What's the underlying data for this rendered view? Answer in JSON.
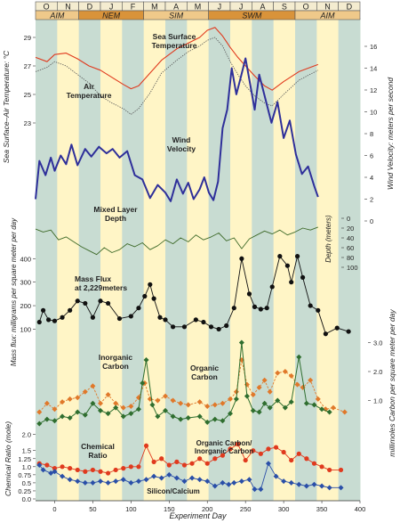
{
  "chart_data": {
    "type": "line",
    "months": [
      "O",
      "N",
      "D",
      "J",
      "F",
      "M",
      "A",
      "M",
      "J",
      "J",
      "A",
      "S",
      "O",
      "N",
      "D"
    ],
    "seasons": [
      "AIM",
      "NEM",
      "SIM",
      "SWM",
      "AIM"
    ],
    "xlabel": "Experiment Day",
    "x_ticks": [
      0,
      50,
      100,
      150,
      200,
      250,
      300,
      350,
      400
    ],
    "axes": {
      "temperature": {
        "label": "Sea Surface–Air Temperature: °C",
        "ticks": [
          23,
          25,
          27,
          29
        ]
      },
      "wind": {
        "label": "Wind Velocity: meters per second",
        "ticks": [
          0,
          2,
          4,
          6,
          8,
          10,
          12,
          14,
          16
        ]
      },
      "depth": {
        "label": "Depth (meters)",
        "ticks": [
          0,
          20,
          40,
          60,
          80,
          100
        ]
      },
      "mass_flux": {
        "label": "Mass flux: milligrams per square meter per day",
        "ticks": [
          100,
          200,
          300,
          400
        ]
      },
      "carbon": {
        "label": "millimoles Carbon per square meter per day",
        "ticks": [
          1.0,
          2.0,
          3.0
        ]
      },
      "ratio": {
        "label": "Chemical Ratio (mole)",
        "ticks": [
          0.0,
          0.25,
          0.5,
          0.75,
          1.0,
          1.25,
          1.5,
          2.0
        ]
      }
    },
    "series": [
      {
        "name": "Sea Surface Temperature",
        "label": "Sea Surface\nTemperature",
        "color": "#e03a1e",
        "x": [
          -25,
          -10,
          0,
          15,
          30,
          45,
          60,
          75,
          90,
          100,
          110,
          125,
          140,
          160,
          175,
          190,
          200,
          210,
          220,
          230,
          240,
          250,
          262,
          275,
          285,
          300,
          320,
          345
        ],
        "y": [
          27.6,
          27.3,
          27.8,
          27.9,
          27.5,
          27.0,
          26.7,
          26.2,
          25.7,
          25.4,
          25.6,
          26.5,
          27.4,
          28.2,
          28.6,
          29.0,
          29.5,
          29.7,
          29.1,
          28.3,
          27.6,
          27.0,
          26.3,
          25.6,
          25.3,
          25.9,
          26.6,
          27.1
        ]
      },
      {
        "name": "Air Temperature",
        "label": "Air\nTemperature",
        "color": "#555555",
        "x": [
          -25,
          -10,
          0,
          15,
          30,
          45,
          60,
          75,
          90,
          100,
          110,
          125,
          140,
          160,
          175,
          190,
          200,
          210,
          220,
          230,
          240,
          250,
          262,
          275,
          285,
          300,
          320,
          345
        ],
        "y": [
          26.6,
          26.9,
          27.3,
          27.0,
          26.4,
          25.8,
          24.9,
          24.4,
          24.0,
          23.6,
          24.0,
          25.1,
          26.5,
          27.4,
          28.0,
          28.4,
          28.8,
          29.0,
          28.4,
          27.3,
          26.4,
          25.6,
          24.9,
          24.4,
          24.2,
          25.0,
          26.0,
          26.7
        ]
      },
      {
        "name": "Wind Velocity",
        "label": "Wind\nVelocity",
        "color": "#2e2f9a",
        "x": [
          -25,
          -20,
          -12,
          -5,
          0,
          8,
          15,
          22,
          30,
          40,
          48,
          58,
          68,
          76,
          85,
          95,
          105,
          115,
          125,
          135,
          145,
          152,
          160,
          168,
          175,
          182,
          190,
          196,
          202,
          208,
          214,
          220,
          226,
          232,
          238,
          244,
          250,
          256,
          262,
          268,
          276,
          284,
          292,
          300,
          308,
          316,
          324,
          332,
          340,
          345
        ],
        "y": [
          2.0,
          5.5,
          4.2,
          5.8,
          4.6,
          6.0,
          5.2,
          7.0,
          5.1,
          6.6,
          5.9,
          6.8,
          6.2,
          6.6,
          5.8,
          6.4,
          4.2,
          3.8,
          2.1,
          3.3,
          2.6,
          1.8,
          3.8,
          2.5,
          3.5,
          2.0,
          2.9,
          4.0,
          2.6,
          1.9,
          3.6,
          8.5,
          10.2,
          14.0,
          11.6,
          13.2,
          14.9,
          12.6,
          10.2,
          13.4,
          11.2,
          9.0,
          10.9,
          7.6,
          9.2,
          6.1,
          4.3,
          5.0,
          3.2,
          2.2
        ]
      },
      {
        "name": "Mixed Layer Depth",
        "label": "Mixed Layer\nDepth",
        "color": "#3f6b2a",
        "x": [
          -25,
          -15,
          -5,
          5,
          15,
          25,
          35,
          45,
          55,
          65,
          75,
          85,
          95,
          105,
          115,
          125,
          135,
          145,
          155,
          165,
          175,
          185,
          195,
          205,
          215,
          225,
          235,
          245,
          255,
          265,
          275,
          285,
          295,
          305,
          315,
          325,
          335,
          345
        ],
        "y": [
          22,
          28,
          24,
          44,
          38,
          48,
          58,
          66,
          74,
          60,
          70,
          64,
          52,
          58,
          50,
          64,
          56,
          44,
          52,
          40,
          48,
          34,
          44,
          38,
          30,
          46,
          40,
          62,
          42,
          34,
          26,
          32,
          24,
          34,
          28,
          20,
          24,
          18
        ]
      },
      {
        "name": "Mass Flux at 2,229meters",
        "label": "Mass Flux\nat 2,229meters",
        "color": "#111111",
        "x": [
          -20,
          -15,
          -8,
          0,
          10,
          20,
          30,
          40,
          50,
          60,
          70,
          85,
          100,
          110,
          118,
          125,
          130,
          138,
          145,
          155,
          170,
          185,
          195,
          205,
          215,
          225,
          235,
          245,
          255,
          262,
          270,
          278,
          285,
          295,
          305,
          310,
          318,
          325,
          335,
          345,
          355,
          370,
          385
        ],
        "y": [
          130,
          180,
          140,
          135,
          150,
          180,
          220,
          210,
          150,
          220,
          210,
          145,
          155,
          190,
          240,
          290,
          230,
          150,
          140,
          110,
          110,
          140,
          130,
          110,
          100,
          115,
          190,
          400,
          250,
          195,
          185,
          190,
          280,
          410,
          370,
          300,
          410,
          320,
          200,
          180,
          80,
          105,
          90
        ]
      },
      {
        "name": "Inorganic Carbon",
        "label": "Inorganic\nCarbon",
        "color": "#2f6e2f",
        "x": [
          -20,
          -10,
          0,
          10,
          20,
          30,
          40,
          50,
          60,
          70,
          80,
          90,
          100,
          110,
          115,
          120,
          128,
          135,
          145,
          155,
          165,
          175,
          190,
          200,
          210,
          220,
          230,
          238,
          245,
          252,
          260,
          268,
          275,
          282,
          292,
          302,
          310,
          320,
          330,
          340,
          350,
          360
        ],
        "y": [
          0.2,
          0.35,
          0.3,
          0.45,
          0.4,
          0.6,
          0.5,
          0.9,
          0.65,
          0.55,
          0.75,
          0.45,
          0.55,
          0.7,
          1.6,
          2.4,
          0.85,
          0.45,
          0.65,
          0.45,
          0.35,
          0.4,
          0.45,
          0.25,
          0.35,
          0.3,
          0.55,
          1.05,
          3.0,
          1.15,
          0.65,
          0.6,
          0.9,
          0.75,
          1.0,
          0.75,
          0.95,
          2.5,
          0.9,
          0.85,
          0.7,
          0.6
        ]
      },
      {
        "name": "Organic Carbon",
        "label": "Organic\nCarbon",
        "color": "#e0782a",
        "x": [
          -20,
          -10,
          0,
          10,
          20,
          30,
          40,
          50,
          60,
          70,
          80,
          90,
          100,
          110,
          118,
          125,
          135,
          145,
          155,
          165,
          175,
          190,
          200,
          210,
          220,
          230,
          238,
          245,
          252,
          260,
          268,
          275,
          282,
          292,
          302,
          310,
          318,
          325,
          335,
          345,
          355,
          365,
          380
        ],
        "y": [
          0.6,
          0.9,
          0.7,
          0.95,
          1.05,
          1.1,
          1.3,
          1.5,
          0.9,
          1.2,
          0.9,
          0.75,
          0.8,
          1.1,
          1.6,
          1.05,
          1.0,
          1.15,
          1.0,
          0.9,
          0.85,
          0.95,
          0.8,
          0.85,
          0.9,
          1.05,
          1.3,
          2.4,
          1.55,
          1.2,
          1.45,
          1.7,
          1.3,
          1.95,
          2.0,
          1.85,
          1.55,
          1.45,
          1.7,
          1.05,
          0.7,
          0.75,
          0.6
        ]
      },
      {
        "name": "Organic Carbon/ Inorganic Carbon",
        "label": "Organic Carbon/\nInorganic Carbon",
        "color": "#e03a1e",
        "x": [
          -20,
          -10,
          0,
          10,
          20,
          30,
          40,
          50,
          60,
          70,
          80,
          90,
          100,
          110,
          120,
          130,
          140,
          150,
          160,
          170,
          180,
          190,
          200,
          210,
          220,
          230,
          240,
          250,
          260,
          270,
          280,
          290,
          300,
          310,
          320,
          330,
          340,
          350,
          360,
          375
        ],
        "y": [
          1.1,
          1.05,
          0.95,
          1.0,
          0.95,
          0.9,
          0.85,
          0.9,
          0.85,
          0.8,
          0.9,
          0.95,
          1.0,
          1.0,
          1.65,
          1.15,
          1.25,
          1.05,
          1.15,
          1.05,
          1.1,
          1.25,
          1.1,
          1.25,
          1.35,
          1.55,
          1.7,
          1.2,
          1.5,
          1.4,
          1.55,
          1.6,
          1.45,
          1.2,
          1.4,
          1.25,
          1.1,
          1.0,
          0.9,
          0.9
        ]
      },
      {
        "name": "Silicon/Calcium",
        "label": "Silicon/Calcium",
        "color": "#2a4fa8",
        "x": [
          -20,
          -15,
          -5,
          0,
          10,
          20,
          30,
          40,
          50,
          60,
          70,
          80,
          90,
          100,
          110,
          120,
          130,
          140,
          150,
          160,
          170,
          180,
          190,
          200,
          210,
          220,
          228,
          235,
          245,
          255,
          262,
          270,
          280,
          290,
          300,
          310,
          320,
          330,
          340,
          350,
          360,
          375
        ],
        "y": [
          1.05,
          0.9,
          0.8,
          0.85,
          0.7,
          0.6,
          0.55,
          0.5,
          0.5,
          0.55,
          0.5,
          0.55,
          0.6,
          0.5,
          0.55,
          0.6,
          0.7,
          0.65,
          0.75,
          0.65,
          0.55,
          0.65,
          0.6,
          0.55,
          0.4,
          0.5,
          0.45,
          0.5,
          0.55,
          0.6,
          0.3,
          0.3,
          1.1,
          0.7,
          0.55,
          0.5,
          0.45,
          0.4,
          0.45,
          0.4,
          0.35,
          0.35
        ]
      }
    ]
  }
}
